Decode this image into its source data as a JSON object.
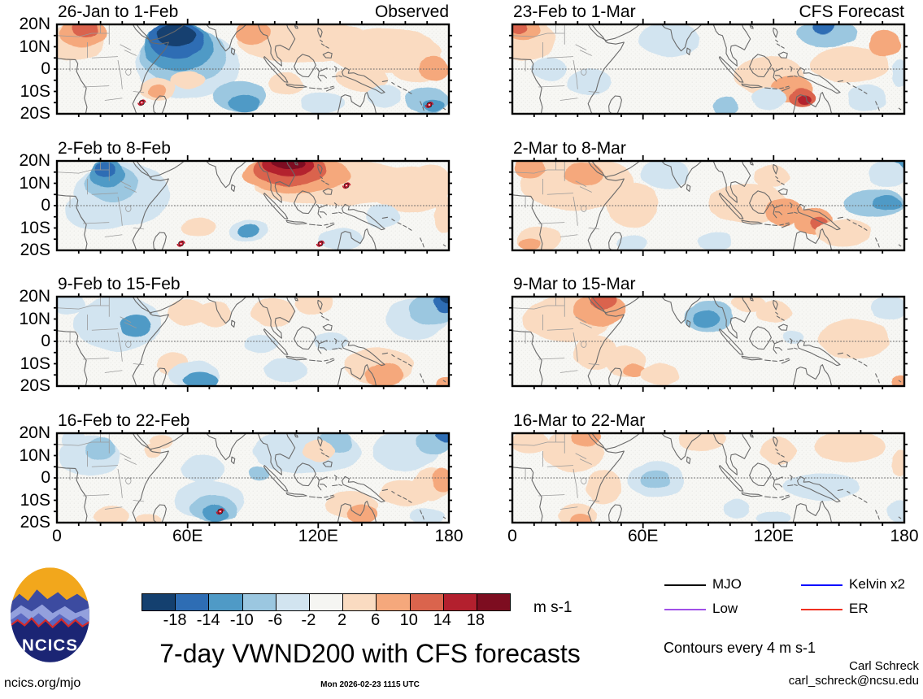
{
  "figure": {
    "title": "7-day VWND200 with CFS forecasts",
    "units_label": "m s-1",
    "site": "ncics.org/mjo",
    "timestamp": "Mon 2026-02-23 1115 UTC",
    "credit_name": "Carl Schreck",
    "credit_email": "carl_schreck@ncsu.edu",
    "logo_text": "NCICS",
    "column_tags": [
      "Observed",
      "CFS Forecast"
    ]
  },
  "axes": {
    "lat_labels": [
      "20N",
      "10N",
      "0",
      "10S",
      "20S"
    ],
    "lon_labels": [
      "0",
      "60E",
      "120E",
      "180"
    ],
    "lon_values": [
      0,
      60,
      120,
      180
    ],
    "lat_values": [
      20,
      10,
      0,
      -10,
      -20
    ]
  },
  "colorbar": {
    "units": "m s-1",
    "tick_labels": [
      "-18",
      "-14",
      "-10",
      "-6",
      "-2",
      "2",
      "6",
      "10",
      "14",
      "18"
    ],
    "colors": [
      "#14406f",
      "#2e6db4",
      "#4f9ac6",
      "#9bc7e0",
      "#d2e4f0",
      "#f5f5f2",
      "#fadbc1",
      "#f5a87c",
      "#da644d",
      "#b3202e",
      "#7d0d20"
    ]
  },
  "legend": {
    "note": "Contours every 4 m s-1",
    "items": [
      {
        "label": "MJO",
        "color": "#000000"
      },
      {
        "label": "Kelvin x2",
        "color": "#0d0dff"
      },
      {
        "label": "Low",
        "color": "#a050e8"
      },
      {
        "label": "ER",
        "color": "#f03020"
      }
    ]
  },
  "chart_data": {
    "type": "heatmap",
    "subtype": "filled-contour anomaly maps of 200-hPa meridional wind (VWND200), 7-day means",
    "title": "7-day VWND200 with CFS forecasts",
    "units": "m s-1",
    "contour_interval_note": "Contours every 4 m s-1",
    "lon_range": [
      0,
      180
    ],
    "lat_range": [
      -20,
      20
    ],
    "level_bounds": [
      -18,
      -14,
      -10,
      -6,
      -2,
      2,
      6,
      10,
      14,
      18
    ],
    "columns": [
      "Observed",
      "CFS Forecast"
    ],
    "anomaly_format": "[lon_deg_E, lat_deg_N, rx_deg, ry_deg, color_level_index]",
    "panels": [
      {
        "id": "L1",
        "title": "26-Jan to 1-Feb",
        "tag": "Observed",
        "col": 0,
        "row": 0,
        "anomalies": [
          [
            8,
            12,
            14,
            8,
            6
          ],
          [
            12,
            16,
            11,
            6,
            7
          ],
          [
            13,
            18,
            6,
            4,
            8
          ],
          [
            60,
            2,
            24,
            15,
            4
          ],
          [
            58,
            6,
            20,
            13,
            3
          ],
          [
            56,
            10,
            16,
            11,
            2
          ],
          [
            55,
            13,
            13,
            8,
            1
          ],
          [
            55,
            15,
            9,
            5,
            0
          ],
          [
            115,
            12,
            32,
            9,
            6
          ],
          [
            90,
            16,
            8,
            5,
            7
          ],
          [
            150,
            8,
            26,
            10,
            6
          ],
          [
            165,
            2,
            12,
            8,
            6
          ],
          [
            173,
            0,
            7,
            5,
            7
          ],
          [
            46,
            -9,
            8,
            5,
            6
          ],
          [
            46,
            -10,
            4,
            3,
            7
          ],
          [
            60,
            -5,
            8,
            4,
            6
          ],
          [
            84,
            -12,
            12,
            7,
            3
          ],
          [
            86,
            -15,
            7,
            4,
            2
          ],
          [
            105,
            -7,
            8,
            5,
            6
          ],
          [
            122,
            -15,
            10,
            5,
            4
          ],
          [
            140,
            -4,
            12,
            6,
            6
          ],
          [
            150,
            -12,
            8,
            5,
            4
          ],
          [
            170,
            -14,
            10,
            6,
            3
          ],
          [
            173,
            -16,
            5,
            3,
            2
          ]
        ],
        "cyclones": [
          [
            39,
            -15
          ],
          [
            171,
            -16
          ]
        ]
      },
      {
        "id": "R1",
        "title": "23-Feb to 1-Mar",
        "tag": "CFS Forecast",
        "col": 1,
        "row": 0,
        "anomalies": [
          [
            6,
            13,
            14,
            9,
            6
          ],
          [
            5,
            18,
            8,
            5,
            7
          ],
          [
            3,
            19,
            4,
            3,
            8
          ],
          [
            17,
            0,
            8,
            5,
            4
          ],
          [
            35,
            -6,
            10,
            6,
            4
          ],
          [
            72,
            13,
            14,
            8,
            4
          ],
          [
            145,
            16,
            14,
            6,
            3
          ],
          [
            143,
            19,
            5,
            3,
            1
          ],
          [
            118,
            -3,
            16,
            9,
            6
          ],
          [
            128,
            -9,
            10,
            6,
            7
          ],
          [
            133,
            -13,
            6,
            4,
            8
          ],
          [
            134,
            -14,
            3,
            2,
            9
          ],
          [
            155,
            2,
            18,
            8,
            6
          ],
          [
            171,
            11,
            7,
            6,
            7
          ],
          [
            163,
            -13,
            9,
            6,
            4
          ],
          [
            178,
            -2,
            4,
            6,
            4
          ],
          [
            98,
            -17,
            6,
            4,
            3
          ],
          [
            118,
            -13,
            8,
            5,
            4
          ]
        ],
        "cyclones": []
      },
      {
        "id": "L2",
        "title": "2-Feb to 8-Feb",
        "tag": null,
        "col": 0,
        "row": 1,
        "anomalies": [
          [
            30,
            5,
            22,
            14,
            4
          ],
          [
            20,
            -2,
            16,
            9,
            4
          ],
          [
            25,
            10,
            12,
            8,
            3
          ],
          [
            23,
            14,
            8,
            6,
            2
          ],
          [
            22,
            16,
            5,
            3,
            1
          ],
          [
            128,
            10,
            38,
            10,
            6
          ],
          [
            110,
            14,
            25,
            8,
            7
          ],
          [
            107,
            16,
            17,
            7,
            8
          ],
          [
            106,
            18,
            12,
            5,
            9
          ],
          [
            106,
            19,
            8,
            3,
            10
          ],
          [
            162,
            7,
            18,
            10,
            6
          ],
          [
            88,
            -11,
            9,
            5,
            4
          ],
          [
            88,
            -11,
            5,
            3,
            2
          ],
          [
            65,
            -10,
            8,
            4,
            6
          ],
          [
            130,
            -15,
            10,
            5,
            4
          ],
          [
            178,
            -4,
            5,
            8,
            6
          ],
          [
            150,
            -5,
            8,
            5,
            4
          ],
          [
            172,
            12,
            8,
            6,
            6
          ]
        ],
        "cyclones": [
          [
            133,
            9
          ],
          [
            57,
            -17
          ],
          [
            121,
            -17
          ]
        ]
      },
      {
        "id": "R2",
        "title": "2-Mar to 8-Mar",
        "tag": null,
        "col": 1,
        "row": 1,
        "anomalies": [
          [
            30,
            10,
            26,
            12,
            6
          ],
          [
            8,
            17,
            7,
            5,
            7
          ],
          [
            33,
            14,
            9,
            5,
            7
          ],
          [
            55,
            0,
            12,
            10,
            6
          ],
          [
            70,
            14,
            11,
            7,
            4
          ],
          [
            108,
            1,
            18,
            9,
            6
          ],
          [
            119,
            13,
            8,
            5,
            6
          ],
          [
            125,
            -3,
            9,
            6,
            7
          ],
          [
            138,
            -7,
            9,
            6,
            7
          ],
          [
            141,
            -8,
            4,
            3,
            8
          ],
          [
            152,
            -12,
            13,
            6,
            6
          ],
          [
            166,
            1,
            14,
            6,
            3
          ],
          [
            172,
            1,
            7,
            3,
            2
          ],
          [
            176,
            19,
            5,
            3,
            2
          ],
          [
            172,
            14,
            8,
            6,
            4
          ],
          [
            12,
            -15,
            10,
            6,
            6
          ],
          [
            8,
            -17,
            5,
            3,
            7
          ],
          [
            55,
            -17,
            7,
            4,
            4
          ],
          [
            93,
            -16,
            8,
            4,
            4
          ]
        ],
        "cyclones": []
      },
      {
        "id": "L3",
        "title": "9-Feb to 15-Feb",
        "tag": null,
        "col": 0,
        "row": 2,
        "anomalies": [
          [
            5,
            17,
            8,
            5,
            4
          ],
          [
            28,
            8,
            20,
            12,
            4
          ],
          [
            36,
            7,
            7,
            5,
            2
          ],
          [
            60,
            13,
            9,
            6,
            6
          ],
          [
            72,
            12,
            8,
            6,
            6
          ],
          [
            99,
            13,
            10,
            6,
            6
          ],
          [
            118,
            17,
            9,
            5,
            6
          ],
          [
            165,
            10,
            14,
            9,
            4
          ],
          [
            172,
            14,
            10,
            7,
            3
          ],
          [
            178,
            17,
            5,
            4,
            1
          ],
          [
            179,
            19,
            3,
            2,
            0
          ],
          [
            94,
            -1,
            8,
            4,
            4
          ],
          [
            126,
            0,
            8,
            4,
            4
          ],
          [
            53,
            -10,
            7,
            5,
            6
          ],
          [
            63,
            -15,
            12,
            6,
            4
          ],
          [
            66,
            -18,
            8,
            4,
            2
          ],
          [
            105,
            -13,
            10,
            5,
            4
          ],
          [
            148,
            -11,
            16,
            8,
            6
          ],
          [
            150,
            -15,
            9,
            5,
            7
          ],
          [
            178,
            -19,
            4,
            3,
            7
          ]
        ],
        "cyclones": []
      },
      {
        "id": "R3",
        "title": "9-Mar to 15-Mar",
        "tag": null,
        "col": 1,
        "row": 2,
        "anomalies": [
          [
            25,
            10,
            20,
            10,
            6
          ],
          [
            40,
            14,
            12,
            7,
            7
          ],
          [
            42,
            18,
            6,
            4,
            8
          ],
          [
            38,
            -5,
            10,
            8,
            6
          ],
          [
            52,
            -9,
            9,
            7,
            6
          ],
          [
            56,
            -13,
            5,
            3,
            7
          ],
          [
            68,
            -15,
            9,
            5,
            6
          ],
          [
            90,
            11,
            11,
            7,
            3
          ],
          [
            89,
            10,
            6,
            4,
            2
          ],
          [
            120,
            13,
            8,
            5,
            6
          ],
          [
            129,
            2,
            5,
            3,
            4
          ],
          [
            157,
            1,
            16,
            9,
            6
          ],
          [
            173,
            15,
            8,
            5,
            4
          ],
          [
            178,
            -18,
            4,
            3,
            7
          ],
          [
            108,
            17,
            8,
            4,
            6
          ]
        ],
        "cyclones": []
      },
      {
        "id": "L4",
        "title": "16-Feb to 22-Feb",
        "tag": null,
        "col": 0,
        "row": 3,
        "anomalies": [
          [
            15,
            10,
            14,
            9,
            4
          ],
          [
            20,
            13,
            7,
            5,
            3
          ],
          [
            8,
            17,
            6,
            4,
            4
          ],
          [
            44,
            12,
            4,
            3,
            6
          ],
          [
            48,
            16,
            5,
            3,
            6
          ],
          [
            67,
            4,
            10,
            6,
            4
          ],
          [
            93,
            2,
            5,
            3,
            3
          ],
          [
            115,
            12,
            25,
            10,
            4
          ],
          [
            128,
            16,
            8,
            5,
            3
          ],
          [
            160,
            12,
            15,
            9,
            4
          ],
          [
            173,
            16,
            8,
            5,
            3
          ],
          [
            178,
            19,
            4,
            3,
            1
          ],
          [
            120,
            12,
            7,
            5,
            6
          ],
          [
            70,
            -10,
            16,
            9,
            4
          ],
          [
            72,
            -14,
            11,
            6,
            3
          ],
          [
            73,
            -16,
            6,
            4,
            2
          ],
          [
            25,
            -17,
            8,
            4,
            6
          ],
          [
            42,
            -19,
            6,
            3,
            6
          ],
          [
            135,
            -12,
            12,
            6,
            6
          ],
          [
            140,
            -16,
            7,
            4,
            7
          ],
          [
            160,
            -7,
            12,
            6,
            6
          ],
          [
            172,
            -3,
            9,
            7,
            6
          ],
          [
            177,
            -1,
            5,
            5,
            7
          ],
          [
            170,
            -17,
            8,
            4,
            4
          ]
        ],
        "cyclones": [
          [
            75,
            -15
          ]
        ]
      },
      {
        "id": "R4",
        "title": "16-Mar to 22-Mar",
        "tag": null,
        "col": 1,
        "row": 3,
        "anomalies": [
          [
            8,
            16,
            9,
            5,
            6
          ],
          [
            28,
            12,
            14,
            9,
            6
          ],
          [
            34,
            18,
            7,
            4,
            7
          ],
          [
            42,
            -4,
            8,
            8,
            6
          ],
          [
            30,
            -17,
            9,
            5,
            6
          ],
          [
            31,
            -19,
            5,
            3,
            7
          ],
          [
            66,
            -1,
            13,
            8,
            4
          ],
          [
            66,
            -1,
            7,
            4,
            3
          ],
          [
            87,
            17,
            11,
            5,
            6
          ],
          [
            122,
            12,
            8,
            6,
            6
          ],
          [
            103,
            -14,
            6,
            4,
            4
          ],
          [
            120,
            -18,
            8,
            3,
            4
          ],
          [
            155,
            14,
            16,
            7,
            6
          ],
          [
            142,
            -4,
            18,
            6,
            4
          ],
          [
            178,
            -15,
            6,
            5,
            4
          ],
          [
            178,
            7,
            4,
            6,
            6
          ]
        ],
        "cyclones": []
      }
    ]
  }
}
